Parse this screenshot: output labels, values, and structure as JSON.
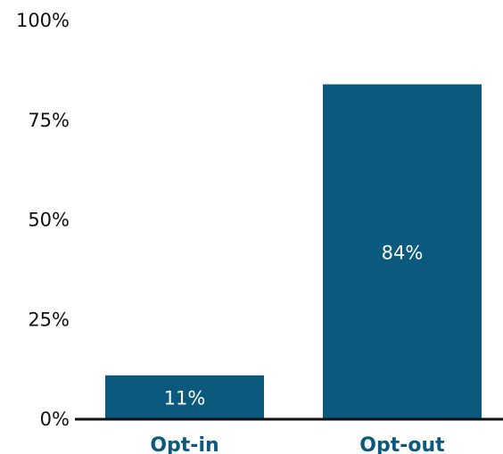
{
  "chart_data": {
    "type": "bar",
    "title": "",
    "xlabel": "",
    "ylabel": "",
    "categories": [
      "Opt-in",
      "Opt-out"
    ],
    "values": [
      11,
      84
    ],
    "data_labels": [
      "11%",
      "84%"
    ],
    "ylim": [
      0,
      100
    ],
    "yticks": [
      0,
      25,
      50,
      75,
      100
    ],
    "ytick_labels": [
      "0%",
      "25%",
      "50%",
      "75%",
      "100%"
    ],
    "grid": false,
    "legend": "none",
    "colors": {
      "bar": "#0b5a7e",
      "category_label": "#0b5a7e",
      "axis": "#111111",
      "data_label": "#ffffff"
    }
  }
}
